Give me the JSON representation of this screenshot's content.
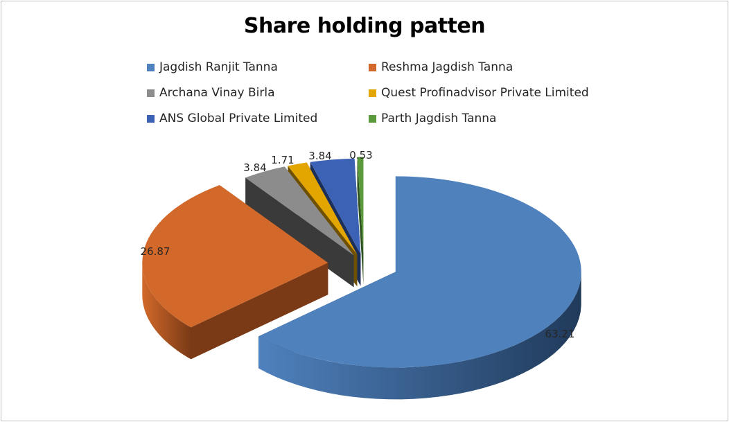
{
  "chart_data": {
    "type": "pie",
    "title": "Share holding patten",
    "categories": [
      "Jagdish Ranjit Tanna",
      "Reshma Jagdish Tanna",
      "Archana Vinay Birla",
      "Quest Profinadvisor Private Limited",
      "ANS Global Private Limited",
      "Parth Jagdish Tanna"
    ],
    "values": [
      63.21,
      26.87,
      3.84,
      1.71,
      3.84,
      0.53
    ],
    "labels": [
      "63.21",
      "26.87",
      "3.84",
      "1.71",
      "3.84",
      "0.53"
    ],
    "colors": [
      "#4f81bd",
      "#d2692a",
      "#8c8c8c",
      "#e3a600",
      "#3b62b4",
      "#5a9a3a"
    ],
    "side_colors": [
      "#203a5a",
      "#7a3a16",
      "#3a3a3a",
      "#6f5000",
      "#1c2f5a",
      "#2e5220"
    ],
    "legend_position": "top",
    "exploded": true,
    "style_3d": true
  }
}
